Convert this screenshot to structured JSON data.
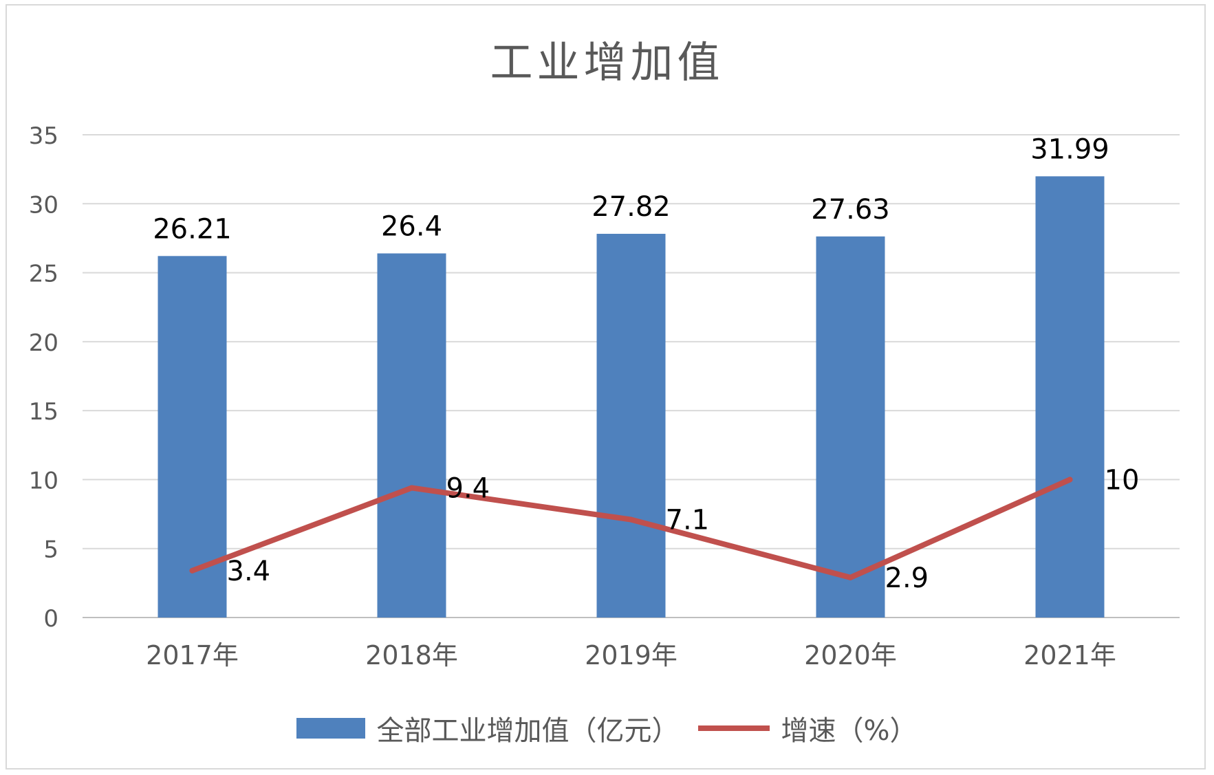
{
  "chart_data": {
    "type": "bar",
    "title": "工业增加值",
    "categories": [
      "2017年",
      "2018年",
      "2019年",
      "2020年",
      "2021年"
    ],
    "series": [
      {
        "name": "全部工业增加值（亿元）",
        "type": "bar",
        "color": "#4f81bd",
        "values": [
          26.21,
          26.4,
          27.82,
          27.63,
          31.99
        ],
        "labels": [
          "26.21",
          "26.4",
          "27.82",
          "27.63",
          "31.99"
        ]
      },
      {
        "name": "增速（%）",
        "type": "line",
        "color": "#c0504d",
        "values": [
          3.4,
          9.4,
          7.1,
          2.9,
          10
        ],
        "labels": [
          "3.4",
          "9.4",
          "7.1",
          "2.9",
          "10"
        ]
      }
    ],
    "ylim": [
      0,
      35
    ],
    "yticks": [
      "0",
      "5",
      "10",
      "15",
      "20",
      "25",
      "30",
      "35"
    ],
    "grid": true,
    "legend": "bottom"
  }
}
